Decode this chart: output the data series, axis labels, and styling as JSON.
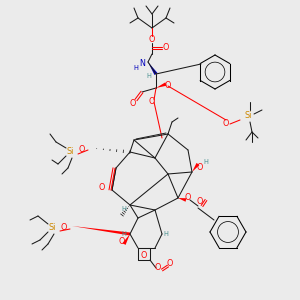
{
  "bg": "#ebebeb",
  "O": "#ff0000",
  "N": "#0000bb",
  "Si": "#cc8800",
  "C": "#1a1a1a",
  "H": "#4a9090",
  "lw": 0.75,
  "fs": 5.8,
  "fs_s": 4.8
}
